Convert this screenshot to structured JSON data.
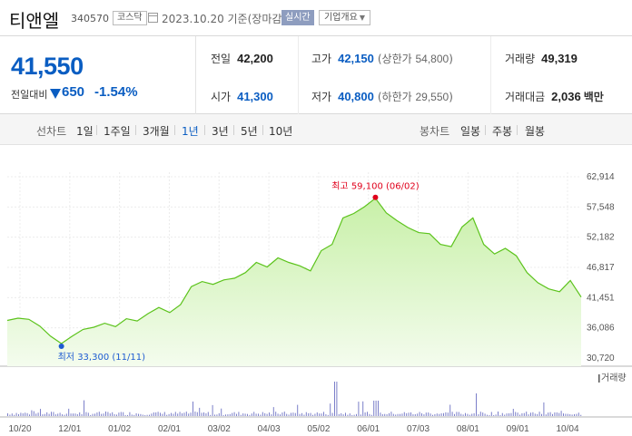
{
  "header": {
    "name": "티앤엘",
    "code": "340570",
    "market": "코스닥",
    "date": "2023.10.20 기준(장마감)",
    "realtime_label": "실시간",
    "overview_label": "기업개요"
  },
  "summary": {
    "price": "41,550",
    "change_label": "전일대비",
    "change": "650",
    "change_pct": "-1.54%",
    "prev_close_label": "전일",
    "prev_close": "42,200",
    "open_label": "시가",
    "open": "41,300",
    "high_label": "고가",
    "high": "42,150",
    "upper_limit_label": "상한가",
    "upper_limit": "54,800",
    "low_label": "저가",
    "low": "40,800",
    "lower_limit_label": "하한가",
    "lower_limit": "29,550",
    "volume_label": "거래량",
    "volume": "49,319",
    "amount_label": "거래대금",
    "amount": "2,036",
    "amount_unit": "백만"
  },
  "periods": {
    "line_label": "선차트",
    "line_items": [
      "1일",
      "1주일",
      "3개월",
      "1년",
      "3년",
      "5년",
      "10년"
    ],
    "active": "1년",
    "candle_label": "봉차트",
    "candle_items": [
      "일봉",
      "주봉",
      "월봉"
    ]
  },
  "chart_data": {
    "type": "area",
    "y_ticks": [
      62914,
      57548,
      52182,
      46817,
      41451,
      36086,
      30720
    ],
    "ylim": [
      30720,
      62914
    ],
    "x_ticks": [
      "10/20",
      "12/01",
      "01/02",
      "02/01",
      "03/02",
      "04/03",
      "05/02",
      "06/01",
      "07/03",
      "08/01",
      "09/01",
      "10/04"
    ],
    "high_annotation": "최고 59,100 (06/02)",
    "low_annotation": "최저 33,300 (11/11)",
    "volume_label": "거래량",
    "line_color": "#5cc31c",
    "fill_color": "#c8f0a8",
    "low_marker_color": "#1d5bd1",
    "high_marker_color": "#e0001b",
    "series": [
      {
        "x": "10/20",
        "y": 37400
      },
      {
        "x": "10/25",
        "y": 37800
      },
      {
        "x": "10/31",
        "y": 37600
      },
      {
        "x": "11/04",
        "y": 36400
      },
      {
        "x": "11/09",
        "y": 34600
      },
      {
        "x": "11/11",
        "y": 33300
      },
      {
        "x": "11/16",
        "y": 34600
      },
      {
        "x": "11/23",
        "y": 35800
      },
      {
        "x": "12/01",
        "y": 36200
      },
      {
        "x": "12/08",
        "y": 36900
      },
      {
        "x": "12/15",
        "y": 36300
      },
      {
        "x": "12/22",
        "y": 37700
      },
      {
        "x": "01/02",
        "y": 37300
      },
      {
        "x": "01/09",
        "y": 38600
      },
      {
        "x": "01/16",
        "y": 39700
      },
      {
        "x": "01/25",
        "y": 38800
      },
      {
        "x": "02/01",
        "y": 40200
      },
      {
        "x": "02/07",
        "y": 43400
      },
      {
        "x": "02/14",
        "y": 44300
      },
      {
        "x": "02/21",
        "y": 43800
      },
      {
        "x": "03/02",
        "y": 44600
      },
      {
        "x": "03/09",
        "y": 44900
      },
      {
        "x": "03/16",
        "y": 45900
      },
      {
        "x": "03/23",
        "y": 47700
      },
      {
        "x": "03/30",
        "y": 46900
      },
      {
        "x": "04/03",
        "y": 48500
      },
      {
        "x": "04/10",
        "y": 47700
      },
      {
        "x": "04/17",
        "y": 47100
      },
      {
        "x": "04/24",
        "y": 46200
      },
      {
        "x": "05/02",
        "y": 49800
      },
      {
        "x": "05/09",
        "y": 50900
      },
      {
        "x": "05/16",
        "y": 55600
      },
      {
        "x": "05/23",
        "y": 56400
      },
      {
        "x": "05/30",
        "y": 57600
      },
      {
        "x": "06/02",
        "y": 59100
      },
      {
        "x": "06/09",
        "y": 56500
      },
      {
        "x": "06/16",
        "y": 55100
      },
      {
        "x": "06/23",
        "y": 53900
      },
      {
        "x": "07/03",
        "y": 53000
      },
      {
        "x": "07/10",
        "y": 52800
      },
      {
        "x": "07/17",
        "y": 50900
      },
      {
        "x": "07/24",
        "y": 50500
      },
      {
        "x": "08/01",
        "y": 54000
      },
      {
        "x": "08/04",
        "y": 55600
      },
      {
        "x": "08/11",
        "y": 50900
      },
      {
        "x": "08/18",
        "y": 49200
      },
      {
        "x": "08/25",
        "y": 50200
      },
      {
        "x": "09/01",
        "y": 48900
      },
      {
        "x": "09/08",
        "y": 45900
      },
      {
        "x": "09/15",
        "y": 44100
      },
      {
        "x": "09/22",
        "y": 43000
      },
      {
        "x": "10/04",
        "y": 42500
      },
      {
        "x": "10/11",
        "y": 44500
      },
      {
        "x": "10/20",
        "y": 41550
      }
    ]
  }
}
